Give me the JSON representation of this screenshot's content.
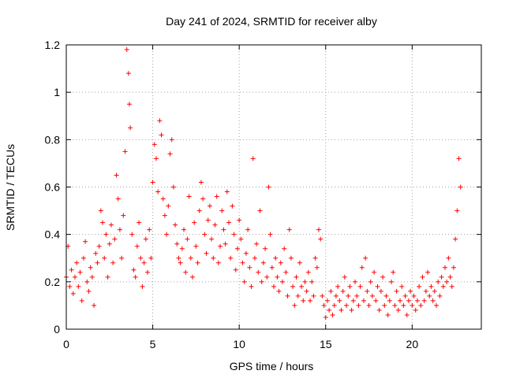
{
  "chart_data": {
    "type": "scatter",
    "title": "Day 241 of 2024, SRMTID for receiver alby",
    "xlabel": "GPS time / hours",
    "ylabel": "SRMTID / TECUs",
    "xlim": [
      0,
      24
    ],
    "ylim": [
      0,
      1.2
    ],
    "xticks": [
      0,
      5,
      10,
      15,
      20
    ],
    "xtick_labels": [
      "0",
      "5",
      "10",
      "15",
      "20"
    ],
    "yticks": [
      0,
      0.2,
      0.4,
      0.6,
      0.8,
      1,
      1.2
    ],
    "ytick_labels": [
      "0",
      "0.2",
      "0.4",
      "0.6",
      "0.8",
      "1",
      "1.2"
    ],
    "grid": true,
    "marker": "+",
    "color": "#ff0000",
    "series": [
      {
        "name": "SRMTID",
        "envelope_hint": "Dense per-satellite points (~30 s cadence) spanning 0–22.9 h; values sketched below as a representative trace",
        "points": [
          [
            0.0,
            0.22
          ],
          [
            0.1,
            0.35
          ],
          [
            0.2,
            0.18
          ],
          [
            0.3,
            0.25
          ],
          [
            0.4,
            0.15
          ],
          [
            0.5,
            0.22
          ],
          [
            0.6,
            0.28
          ],
          [
            0.7,
            0.18
          ],
          [
            0.8,
            0.24
          ],
          [
            0.9,
            0.12
          ],
          [
            1.0,
            0.3
          ],
          [
            1.1,
            0.37
          ],
          [
            1.2,
            0.2
          ],
          [
            1.3,
            0.16
          ],
          [
            1.4,
            0.26
          ],
          [
            1.5,
            0.22
          ],
          [
            1.6,
            0.1
          ],
          [
            1.7,
            0.32
          ],
          [
            1.8,
            0.28
          ],
          [
            1.9,
            0.35
          ],
          [
            2.0,
            0.5
          ],
          [
            2.1,
            0.45
          ],
          [
            2.2,
            0.3
          ],
          [
            2.3,
            0.4
          ],
          [
            2.4,
            0.22
          ],
          [
            2.5,
            0.36
          ],
          [
            2.6,
            0.44
          ],
          [
            2.7,
            0.28
          ],
          [
            2.8,
            0.38
          ],
          [
            2.9,
            0.65
          ],
          [
            3.0,
            0.55
          ],
          [
            3.1,
            0.42
          ],
          [
            3.2,
            0.3
          ],
          [
            3.3,
            0.48
          ],
          [
            3.4,
            0.75
          ],
          [
            3.5,
            1.18
          ],
          [
            3.6,
            1.08
          ],
          [
            3.65,
            0.95
          ],
          [
            3.7,
            0.85
          ],
          [
            3.8,
            0.4
          ],
          [
            3.9,
            0.25
          ],
          [
            4.0,
            0.22
          ],
          [
            4.1,
            0.35
          ],
          [
            4.2,
            0.45
          ],
          [
            4.3,
            0.3
          ],
          [
            4.4,
            0.18
          ],
          [
            4.5,
            0.28
          ],
          [
            4.6,
            0.38
          ],
          [
            4.7,
            0.24
          ],
          [
            4.8,
            0.42
          ],
          [
            4.9,
            0.3
          ],
          [
            5.0,
            0.62
          ],
          [
            5.1,
            0.78
          ],
          [
            5.2,
            0.72
          ],
          [
            5.3,
            0.58
          ],
          [
            5.4,
            0.88
          ],
          [
            5.5,
            0.82
          ],
          [
            5.6,
            0.55
          ],
          [
            5.7,
            0.48
          ],
          [
            5.8,
            0.4
          ],
          [
            5.9,
            0.52
          ],
          [
            6.0,
            0.74
          ],
          [
            6.1,
            0.8
          ],
          [
            6.2,
            0.6
          ],
          [
            6.3,
            0.44
          ],
          [
            6.4,
            0.36
          ],
          [
            6.5,
            0.3
          ],
          [
            6.6,
            0.28
          ],
          [
            6.7,
            0.34
          ],
          [
            6.8,
            0.42
          ],
          [
            6.9,
            0.24
          ],
          [
            7.0,
            0.38
          ],
          [
            7.1,
            0.56
          ],
          [
            7.2,
            0.3
          ],
          [
            7.3,
            0.22
          ],
          [
            7.4,
            0.45
          ],
          [
            7.5,
            0.35
          ],
          [
            7.6,
            0.28
          ],
          [
            7.7,
            0.5
          ],
          [
            7.8,
            0.62
          ],
          [
            7.9,
            0.55
          ],
          [
            8.0,
            0.4
          ],
          [
            8.1,
            0.32
          ],
          [
            8.2,
            0.46
          ],
          [
            8.3,
            0.52
          ],
          [
            8.4,
            0.38
          ],
          [
            8.5,
            0.3
          ],
          [
            8.6,
            0.44
          ],
          [
            8.7,
            0.56
          ],
          [
            8.8,
            0.28
          ],
          [
            8.9,
            0.35
          ],
          [
            9.0,
            0.5
          ],
          [
            9.1,
            0.42
          ],
          [
            9.2,
            0.36
          ],
          [
            9.3,
            0.58
          ],
          [
            9.4,
            0.45
          ],
          [
            9.5,
            0.3
          ],
          [
            9.6,
            0.52
          ],
          [
            9.7,
            0.4
          ],
          [
            9.8,
            0.25
          ],
          [
            9.9,
            0.34
          ],
          [
            10.0,
            0.46
          ],
          [
            10.1,
            0.38
          ],
          [
            10.2,
            0.28
          ],
          [
            10.3,
            0.2
          ],
          [
            10.4,
            0.32
          ],
          [
            10.5,
            0.42
          ],
          [
            10.6,
            0.26
          ],
          [
            10.7,
            0.18
          ],
          [
            10.8,
            0.72
          ],
          [
            10.9,
            0.3
          ],
          [
            11.0,
            0.36
          ],
          [
            11.1,
            0.24
          ],
          [
            11.2,
            0.5
          ],
          [
            11.3,
            0.2
          ],
          [
            11.4,
            0.28
          ],
          [
            11.5,
            0.34
          ],
          [
            11.6,
            0.22
          ],
          [
            11.7,
            0.6
          ],
          [
            11.8,
            0.4
          ],
          [
            11.9,
            0.26
          ],
          [
            12.0,
            0.18
          ],
          [
            12.1,
            0.3
          ],
          [
            12.2,
            0.22
          ],
          [
            12.3,
            0.16
          ],
          [
            12.4,
            0.28
          ],
          [
            12.5,
            0.2
          ],
          [
            12.6,
            0.34
          ],
          [
            12.7,
            0.24
          ],
          [
            12.8,
            0.14
          ],
          [
            12.9,
            0.42
          ],
          [
            13.0,
            0.3
          ],
          [
            13.1,
            0.18
          ],
          [
            13.2,
            0.1
          ],
          [
            13.3,
            0.22
          ],
          [
            13.4,
            0.14
          ],
          [
            13.5,
            0.28
          ],
          [
            13.6,
            0.18
          ],
          [
            13.7,
            0.12
          ],
          [
            13.8,
            0.2
          ],
          [
            13.9,
            0.16
          ],
          [
            14.0,
            0.24
          ],
          [
            14.1,
            0.12
          ],
          [
            14.2,
            0.2
          ],
          [
            14.3,
            0.14
          ],
          [
            14.4,
            0.3
          ],
          [
            14.5,
            0.26
          ],
          [
            14.6,
            0.42
          ],
          [
            14.7,
            0.38
          ],
          [
            14.8,
            0.14
          ],
          [
            14.9,
            0.1
          ],
          [
            15.0,
            0.05
          ],
          [
            15.1,
            0.12
          ],
          [
            15.2,
            0.08
          ],
          [
            15.3,
            0.16
          ],
          [
            15.4,
            0.06
          ],
          [
            15.5,
            0.1
          ],
          [
            15.6,
            0.14
          ],
          [
            15.7,
            0.18
          ],
          [
            15.8,
            0.12
          ],
          [
            15.9,
            0.08
          ],
          [
            16.0,
            0.16
          ],
          [
            16.1,
            0.22
          ],
          [
            16.2,
            0.1
          ],
          [
            16.3,
            0.14
          ],
          [
            16.4,
            0.18
          ],
          [
            16.5,
            0.08
          ],
          [
            16.6,
            0.12
          ],
          [
            16.7,
            0.2
          ],
          [
            16.8,
            0.14
          ],
          [
            16.9,
            0.1
          ],
          [
            17.0,
            0.18
          ],
          [
            17.1,
            0.26
          ],
          [
            17.2,
            0.12
          ],
          [
            17.3,
            0.3
          ],
          [
            17.4,
            0.16
          ],
          [
            17.5,
            0.1
          ],
          [
            17.6,
            0.2
          ],
          [
            17.7,
            0.14
          ],
          [
            17.8,
            0.24
          ],
          [
            17.9,
            0.12
          ],
          [
            18.0,
            0.18
          ],
          [
            18.1,
            0.08
          ],
          [
            18.2,
            0.16
          ],
          [
            18.3,
            0.22
          ],
          [
            18.4,
            0.1
          ],
          [
            18.5,
            0.14
          ],
          [
            18.6,
            0.06
          ],
          [
            18.7,
            0.12
          ],
          [
            18.8,
            0.2
          ],
          [
            18.9,
            0.24
          ],
          [
            19.0,
            0.1
          ],
          [
            19.1,
            0.16
          ],
          [
            19.2,
            0.08
          ],
          [
            19.3,
            0.12
          ],
          [
            19.4,
            0.18
          ],
          [
            19.5,
            0.1
          ],
          [
            19.6,
            0.14
          ],
          [
            19.7,
            0.06
          ],
          [
            19.8,
            0.12
          ],
          [
            19.9,
            0.16
          ],
          [
            20.0,
            0.1
          ],
          [
            20.1,
            0.14
          ],
          [
            20.2,
            0.08
          ],
          [
            20.3,
            0.12
          ],
          [
            20.4,
            0.18
          ],
          [
            20.5,
            0.1
          ],
          [
            20.6,
            0.22
          ],
          [
            20.7,
            0.12
          ],
          [
            20.8,
            0.16
          ],
          [
            20.9,
            0.24
          ],
          [
            21.0,
            0.14
          ],
          [
            21.1,
            0.18
          ],
          [
            21.2,
            0.12
          ],
          [
            21.3,
            0.16
          ],
          [
            21.4,
            0.1
          ],
          [
            21.5,
            0.2
          ],
          [
            21.6,
            0.14
          ],
          [
            21.7,
            0.22
          ],
          [
            21.8,
            0.18
          ],
          [
            21.9,
            0.26
          ],
          [
            22.0,
            0.2
          ],
          [
            22.1,
            0.3
          ],
          [
            22.2,
            0.22
          ],
          [
            22.3,
            0.18
          ],
          [
            22.4,
            0.26
          ],
          [
            22.5,
            0.38
          ],
          [
            22.6,
            0.5
          ],
          [
            22.7,
            0.72
          ],
          [
            22.8,
            0.6
          ]
        ]
      }
    ]
  }
}
